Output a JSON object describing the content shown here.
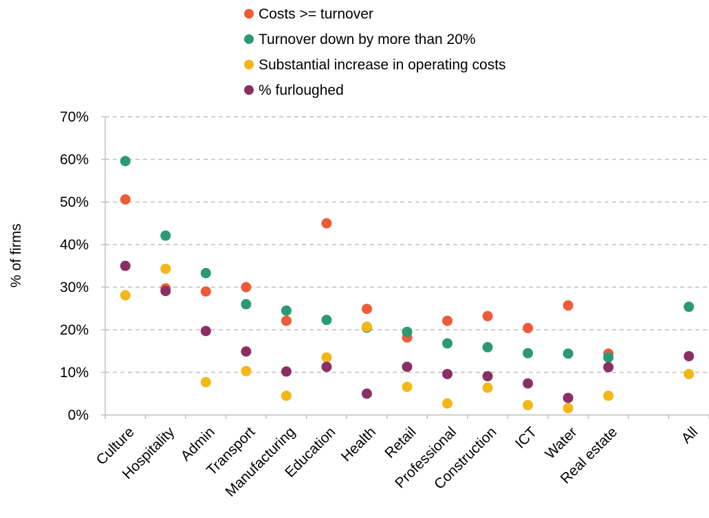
{
  "chart_data": {
    "type": "scatter",
    "title": "",
    "xlabel": "",
    "ylabel": "% of firms",
    "ylim": [
      0,
      70
    ],
    "yticks": [
      "0%",
      "10%",
      "20%",
      "30%",
      "40%",
      "50%",
      "60%",
      "70%"
    ],
    "ytick_values": [
      0,
      10,
      20,
      30,
      40,
      50,
      60,
      70
    ],
    "grid": "horizontal dashed",
    "legend_position": "top-center",
    "categories": [
      "Culture",
      "Hospitality",
      "Admin",
      "Transport",
      "Manufacturing",
      "Education",
      "Health",
      "Retail",
      "Professional",
      "Construction",
      "ICT",
      "Water",
      "Real estate",
      "",
      "All"
    ],
    "series": [
      {
        "name": "Costs >= turnover",
        "color": "#ef5a37",
        "values": [
          50.6,
          29.7,
          29.0,
          30.0,
          22.1,
          45.0,
          24.9,
          18.2,
          22.1,
          23.2,
          20.4,
          25.7,
          14.4,
          null,
          null
        ]
      },
      {
        "name": "Turnover down by more than 20%",
        "color": "#2a9a72",
        "values": [
          59.6,
          42.1,
          33.3,
          26.0,
          24.5,
          22.3,
          20.5,
          19.5,
          16.8,
          15.9,
          14.5,
          14.4,
          13.5,
          null,
          25.4
        ]
      },
      {
        "name": "Substantial increase in operating costs",
        "color": "#f4b718",
        "values": [
          28.1,
          34.3,
          7.7,
          10.3,
          4.5,
          13.5,
          20.7,
          6.6,
          2.7,
          6.4,
          2.3,
          1.6,
          4.5,
          null,
          9.6
        ]
      },
      {
        "name": "% furloughed",
        "color": "#8b2f62",
        "values": [
          35.0,
          29.1,
          19.7,
          14.9,
          10.2,
          11.3,
          5.0,
          11.3,
          9.6,
          9.1,
          7.4,
          4.0,
          11.2,
          null,
          13.8
        ]
      }
    ]
  }
}
